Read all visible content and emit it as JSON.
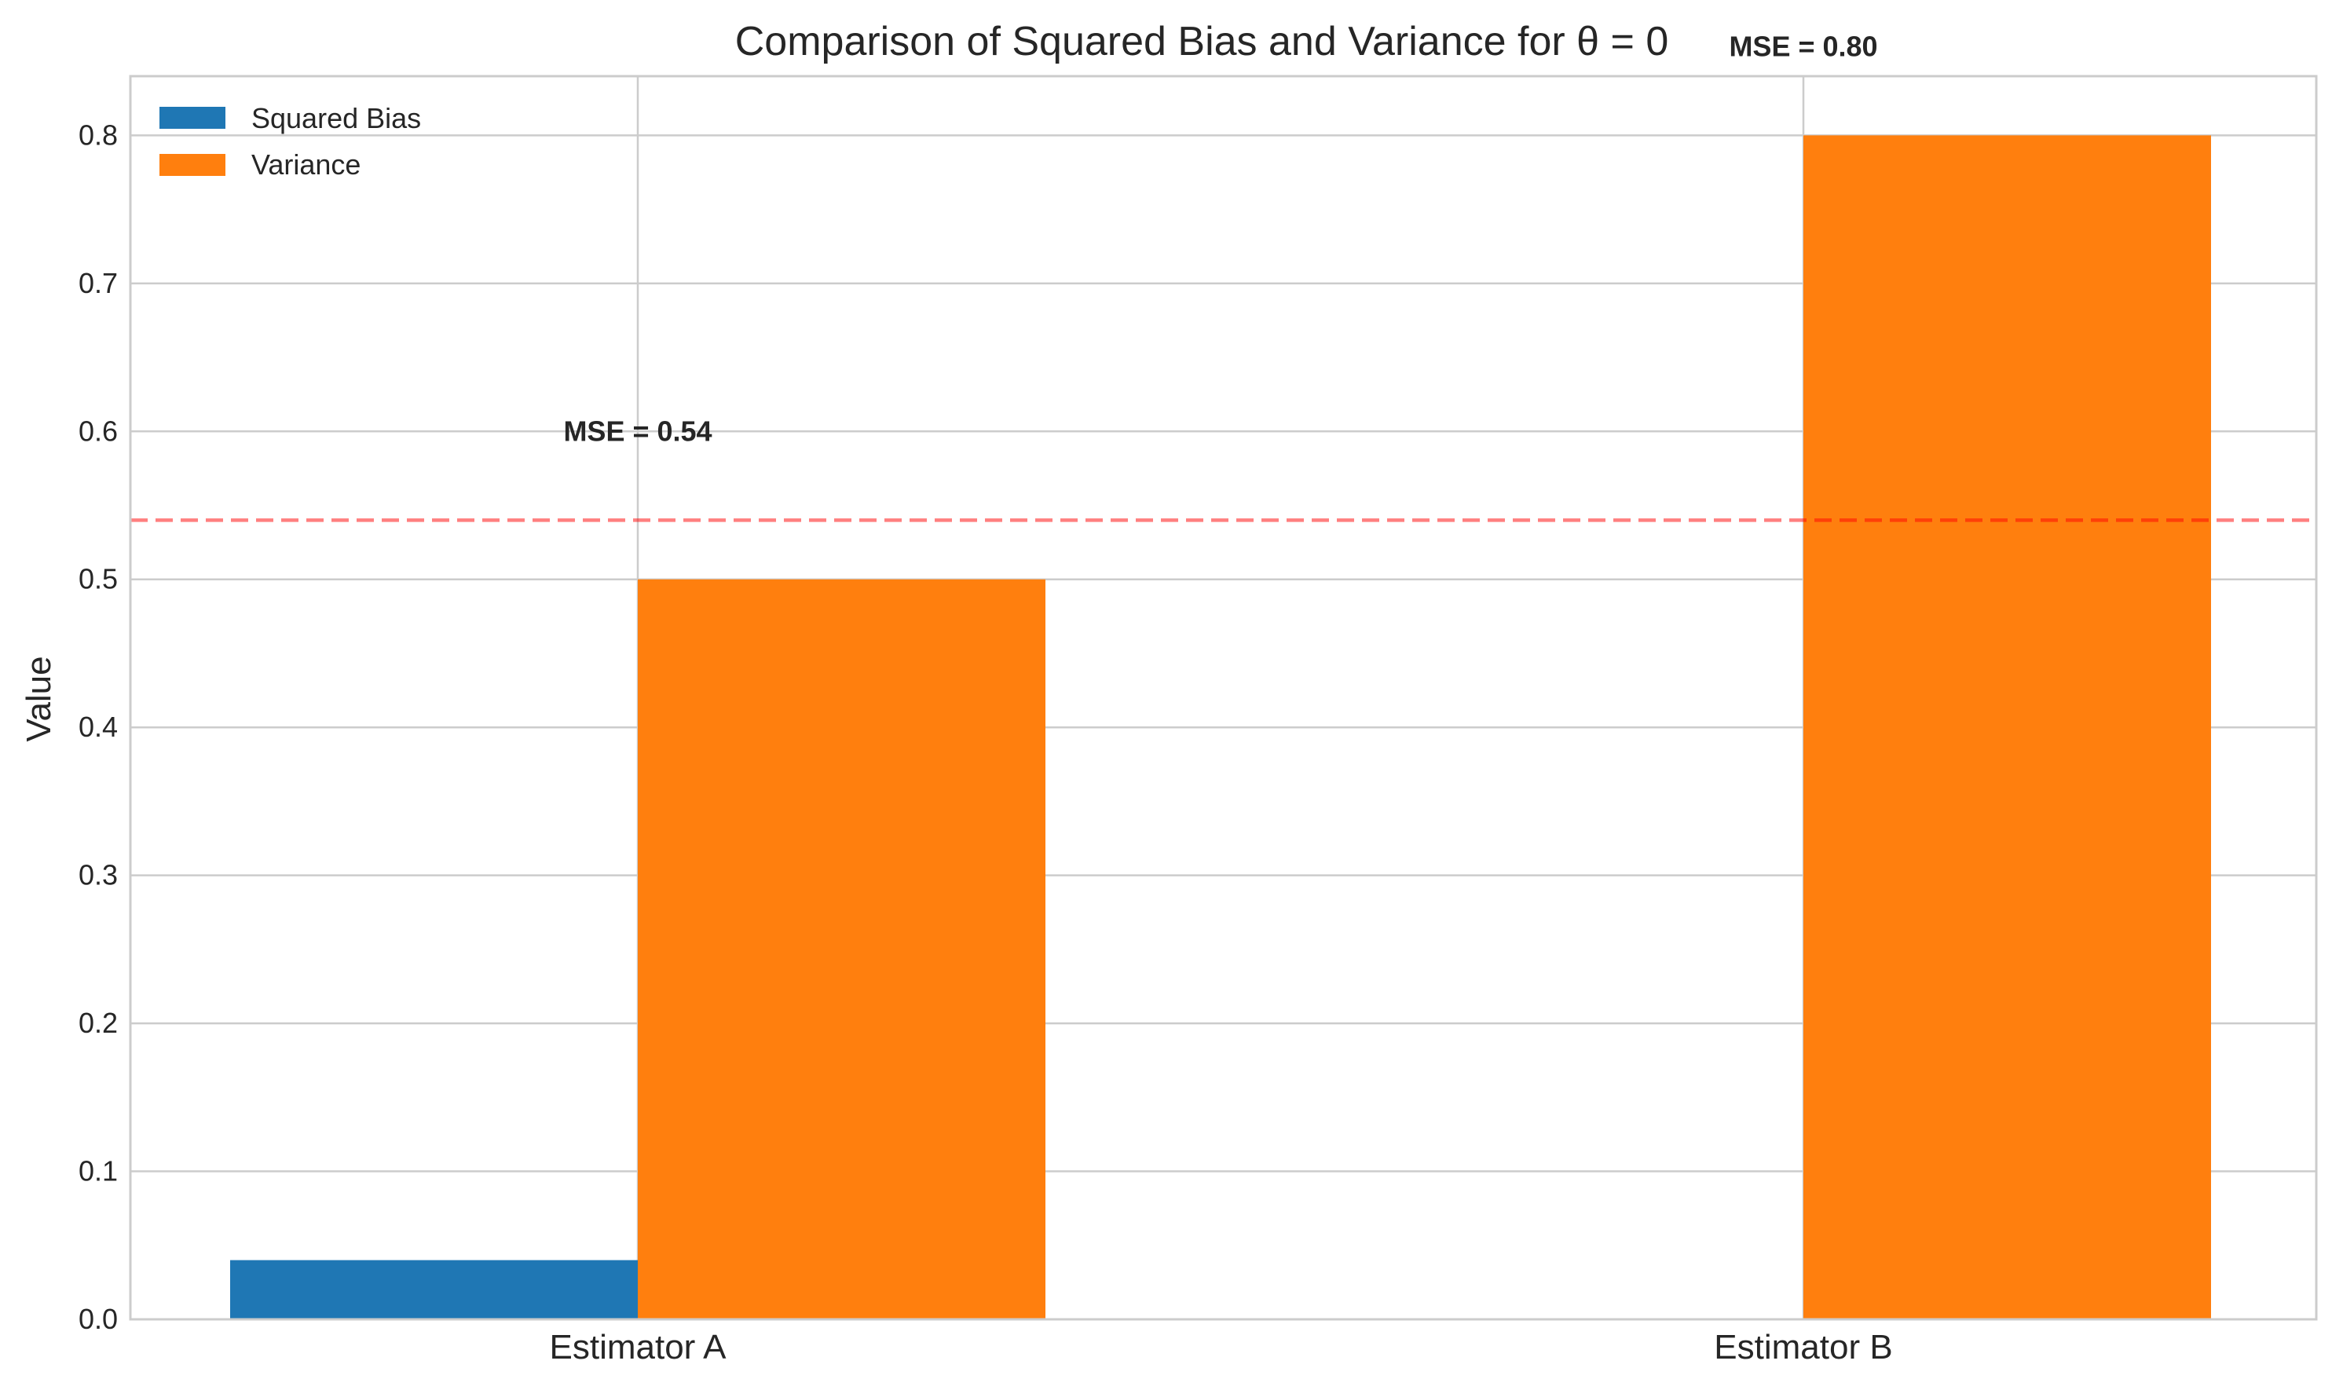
{
  "chart_data": {
    "type": "bar",
    "title": "Comparison of Squared Bias and Variance for θ = 0",
    "xlabel": "",
    "ylabel": "Value",
    "categories": [
      "Estimator A",
      "Estimator B"
    ],
    "series": [
      {
        "name": "Squared Bias",
        "values": [
          0.04,
          0.0
        ],
        "color": "#1f77b4"
      },
      {
        "name": "Variance",
        "values": [
          0.5,
          0.8
        ],
        "color": "#ff7f0e"
      }
    ],
    "ylim": [
      0,
      0.84
    ],
    "yticks": [
      "0.0",
      "0.1",
      "0.2",
      "0.3",
      "0.4",
      "0.5",
      "0.6",
      "0.7",
      "0.8"
    ],
    "reference_line": {
      "y": 0.54,
      "color": "#ff0000",
      "style": "dashed"
    },
    "annotations": [
      {
        "text": "MSE = 0.54",
        "category": "Estimator A",
        "y": 0.6
      },
      {
        "text": "MSE = 0.80",
        "category": "Estimator B",
        "y": 0.86
      }
    ],
    "grid": true,
    "legend_position": "top-left"
  }
}
